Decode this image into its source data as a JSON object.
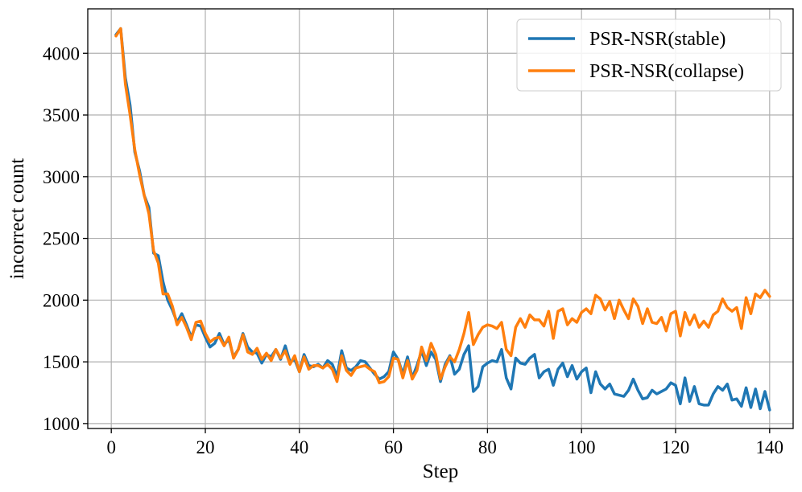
{
  "chart_data": {
    "type": "line",
    "xlabel": "Step",
    "ylabel": "incorrect count",
    "xlim": [
      -5,
      145
    ],
    "ylim": [
      960,
      4360
    ],
    "x_ticks": [
      0,
      20,
      40,
      60,
      80,
      100,
      120,
      140
    ],
    "y_ticks": [
      1000,
      1500,
      2000,
      2500,
      3000,
      3500,
      4000
    ],
    "grid": true,
    "legend_position": "top-right",
    "series": [
      {
        "name": "PSR-NSR(stable)",
        "color": "#1f77b4",
        "x": [
          1,
          2,
          3,
          4,
          5,
          6,
          7,
          8,
          9,
          10,
          11,
          12,
          13,
          14,
          15,
          16,
          17,
          18,
          19,
          20,
          21,
          22,
          23,
          24,
          25,
          26,
          27,
          28,
          29,
          30,
          31,
          32,
          33,
          34,
          35,
          36,
          37,
          38,
          39,
          40,
          41,
          42,
          43,
          44,
          45,
          46,
          47,
          48,
          49,
          50,
          51,
          52,
          53,
          54,
          55,
          56,
          57,
          58,
          59,
          60,
          61,
          62,
          63,
          64,
          65,
          66,
          67,
          68,
          69,
          70,
          71,
          72,
          73,
          74,
          75,
          76,
          77,
          78,
          79,
          80,
          81,
          82,
          83,
          84,
          85,
          86,
          87,
          88,
          89,
          90,
          91,
          92,
          93,
          94,
          95,
          96,
          97,
          98,
          99,
          100,
          101,
          102,
          103,
          104,
          105,
          106,
          107,
          108,
          109,
          110,
          111,
          112,
          113,
          114,
          115,
          116,
          117,
          118,
          119,
          120,
          121,
          122,
          123,
          124,
          125,
          126,
          127,
          128,
          129,
          130,
          131,
          132,
          133,
          134,
          135,
          136,
          137,
          138,
          139,
          140
        ],
        "values": [
          4150,
          4200,
          3800,
          3580,
          3200,
          3050,
          2850,
          2750,
          2380,
          2360,
          2150,
          2000,
          1920,
          1820,
          1890,
          1800,
          1700,
          1800,
          1790,
          1700,
          1620,
          1650,
          1730,
          1640,
          1680,
          1540,
          1600,
          1730,
          1620,
          1580,
          1570,
          1490,
          1560,
          1540,
          1600,
          1520,
          1630,
          1500,
          1520,
          1420,
          1560,
          1470,
          1460,
          1480,
          1450,
          1510,
          1480,
          1380,
          1590,
          1450,
          1430,
          1460,
          1510,
          1500,
          1450,
          1400,
          1360,
          1380,
          1420,
          1580,
          1520,
          1400,
          1540,
          1370,
          1470,
          1590,
          1470,
          1580,
          1520,
          1340,
          1480,
          1550,
          1400,
          1440,
          1560,
          1630,
          1260,
          1300,
          1460,
          1490,
          1510,
          1500,
          1600,
          1370,
          1280,
          1530,
          1490,
          1480,
          1530,
          1560,
          1370,
          1420,
          1440,
          1310,
          1440,
          1490,
          1380,
          1470,
          1360,
          1420,
          1450,
          1250,
          1420,
          1320,
          1280,
          1320,
          1240,
          1230,
          1220,
          1270,
          1360,
          1270,
          1200,
          1210,
          1270,
          1240,
          1260,
          1280,
          1330,
          1310,
          1160,
          1370,
          1180,
          1300,
          1160,
          1150,
          1150,
          1240,
          1300,
          1270,
          1320,
          1190,
          1200,
          1140,
          1290,
          1130,
          1280,
          1120,
          1260,
          1110
        ]
      },
      {
        "name": "PSR-NSR(collapse)",
        "color": "#ff7f0e",
        "x": [
          1,
          2,
          3,
          4,
          5,
          6,
          7,
          8,
          9,
          10,
          11,
          12,
          13,
          14,
          15,
          16,
          17,
          18,
          19,
          20,
          21,
          22,
          23,
          24,
          25,
          26,
          27,
          28,
          29,
          30,
          31,
          32,
          33,
          34,
          35,
          36,
          37,
          38,
          39,
          40,
          41,
          42,
          43,
          44,
          45,
          46,
          47,
          48,
          49,
          50,
          51,
          52,
          53,
          54,
          55,
          56,
          57,
          58,
          59,
          60,
          61,
          62,
          63,
          64,
          65,
          66,
          67,
          68,
          69,
          70,
          71,
          72,
          73,
          74,
          75,
          76,
          77,
          78,
          79,
          80,
          81,
          82,
          83,
          84,
          85,
          86,
          87,
          88,
          89,
          90,
          91,
          92,
          93,
          94,
          95,
          96,
          97,
          98,
          99,
          100,
          101,
          102,
          103,
          104,
          105,
          106,
          107,
          108,
          109,
          110,
          111,
          112,
          113,
          114,
          115,
          116,
          117,
          118,
          119,
          120,
          121,
          122,
          123,
          124,
          125,
          126,
          127,
          128,
          129,
          130,
          131,
          132,
          133,
          134,
          135,
          136,
          137,
          138,
          139,
          140
        ],
        "values": [
          4140,
          4200,
          3750,
          3500,
          3220,
          3020,
          2850,
          2700,
          2400,
          2300,
          2050,
          2050,
          1950,
          1800,
          1860,
          1780,
          1680,
          1820,
          1830,
          1730,
          1660,
          1690,
          1700,
          1630,
          1700,
          1530,
          1600,
          1720,
          1580,
          1560,
          1610,
          1520,
          1570,
          1510,
          1600,
          1530,
          1590,
          1480,
          1550,
          1420,
          1540,
          1440,
          1470,
          1470,
          1450,
          1480,
          1440,
          1340,
          1550,
          1430,
          1390,
          1450,
          1460,
          1470,
          1440,
          1420,
          1330,
          1340,
          1380,
          1530,
          1520,
          1370,
          1510,
          1360,
          1430,
          1620,
          1510,
          1650,
          1560,
          1360,
          1460,
          1540,
          1500,
          1600,
          1730,
          1900,
          1640,
          1720,
          1780,
          1800,
          1790,
          1770,
          1820,
          1600,
          1550,
          1780,
          1850,
          1780,
          1880,
          1840,
          1840,
          1790,
          1910,
          1690,
          1910,
          1930,
          1800,
          1850,
          1820,
          1900,
          1930,
          1890,
          2040,
          2010,
          1920,
          1990,
          1850,
          2000,
          1920,
          1850,
          2010,
          1950,
          1810,
          1930,
          1820,
          1810,
          1860,
          1750,
          1890,
          1910,
          1710,
          1900,
          1800,
          1880,
          1780,
          1830,
          1780,
          1880,
          1910,
          2010,
          1940,
          1910,
          1940,
          1770,
          2020,
          1890,
          2050,
          2020,
          2080,
          2030
        ]
      }
    ]
  }
}
